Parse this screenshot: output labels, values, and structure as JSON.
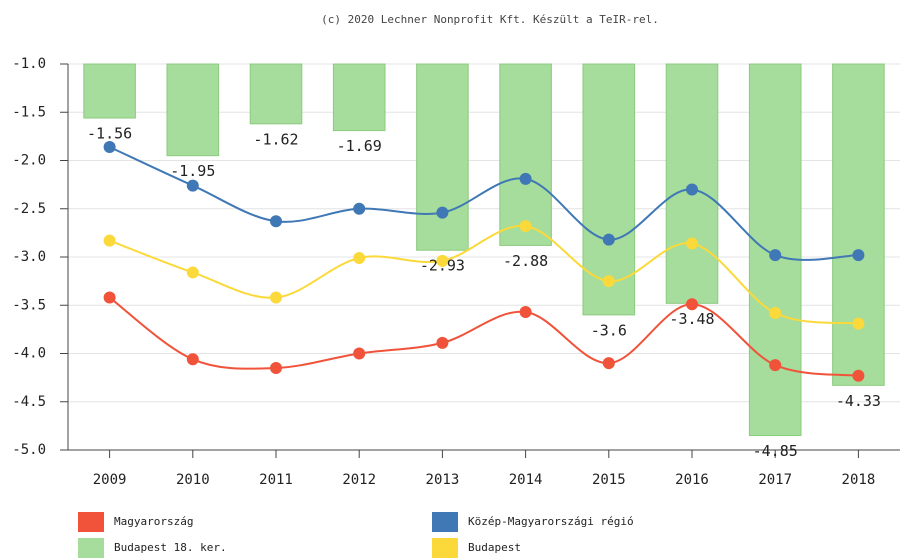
{
  "chart_data": {
    "type": "combo",
    "title": "(c) 2020 Lechner Nonprofit Kft. Készült a TeIR-rel.",
    "categories": [
      "2009",
      "2010",
      "2011",
      "2012",
      "2013",
      "2014",
      "2015",
      "2016",
      "2017",
      "2018"
    ],
    "series": [
      {
        "name": "Magyarország",
        "type": "line",
        "color": "#f0533a",
        "values": [
          -3.42,
          -4.06,
          -4.15,
          -4.0,
          -3.89,
          -3.57,
          -4.1,
          -3.49,
          -4.12,
          -4.23
        ]
      },
      {
        "name": "Közép-Magyarországi régió",
        "type": "line",
        "color": "#3f78b5",
        "values": [
          -1.86,
          -2.26,
          -2.63,
          -2.5,
          -2.54,
          -2.19,
          -2.82,
          -2.3,
          -2.98,
          -2.98
        ]
      },
      {
        "name": "Budapest 18. ker.",
        "type": "bar",
        "color": "#a6dc9c",
        "values": [
          -1.56,
          -1.95,
          -1.62,
          -1.69,
          -2.93,
          -2.88,
          -3.6,
          -3.48,
          -4.85,
          -4.33
        ]
      },
      {
        "name": "Budapest",
        "type": "line",
        "color": "#fbd93a",
        "values": [
          -2.83,
          -3.16,
          -3.42,
          -3.01,
          -3.04,
          -2.68,
          -3.25,
          -2.86,
          -3.58,
          -3.69
        ]
      }
    ],
    "ylim": [
      -5,
      -1
    ],
    "yticks": [
      {
        "value": -1,
        "label": "-1.0"
      },
      -1.5,
      {
        "value": -2,
        "label": "-2.0"
      },
      -2.5,
      {
        "value": -3,
        "label": "-3.0"
      },
      -3.5,
      {
        "value": -4,
        "label": "-4.0"
      },
      -4.5,
      {
        "value": -5,
        "label": "-5.0"
      }
    ],
    "grid": true
  }
}
